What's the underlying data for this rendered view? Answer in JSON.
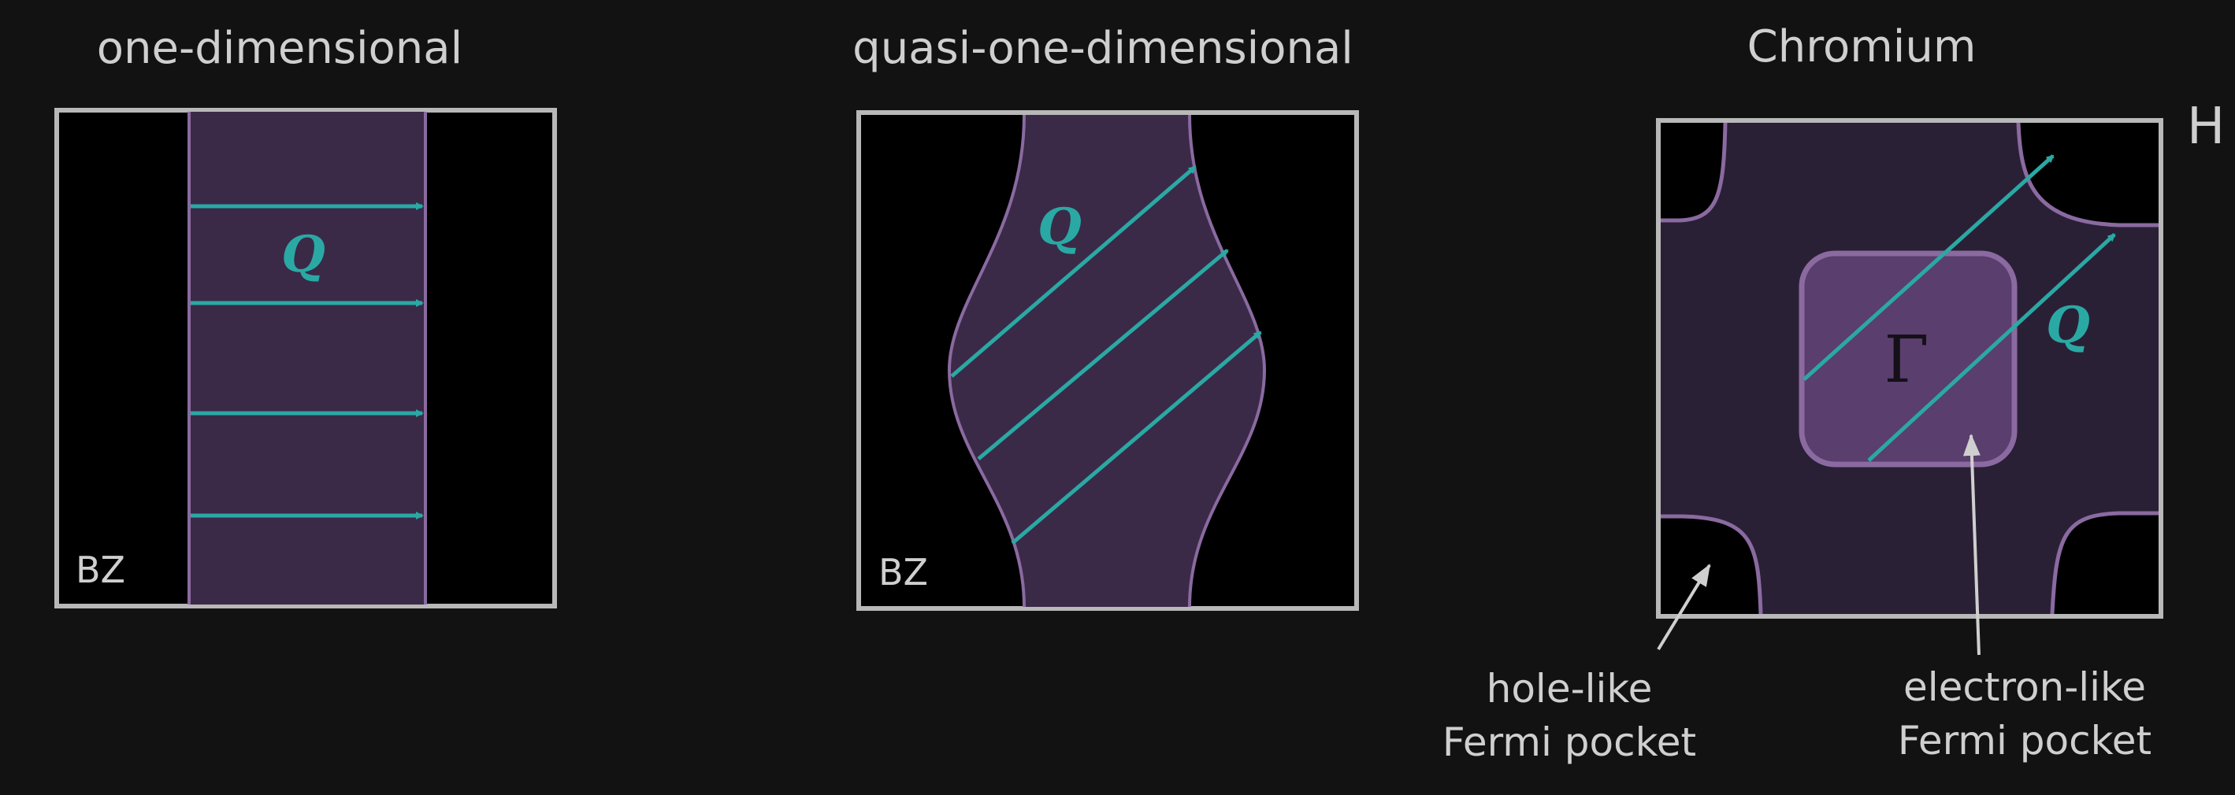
{
  "panels": [
    {
      "title": "one-dimensional",
      "bz_label": "BZ",
      "vector_label": "Q"
    },
    {
      "title": "quasi-one-dimensional",
      "bz_label": "BZ",
      "vector_label": "Q"
    },
    {
      "title": "Chromium",
      "corner_label": "H",
      "center_label": "Γ",
      "vector_label": "Q",
      "hole_label": [
        "hole-like",
        "Fermi pocket"
      ],
      "electron_label": [
        "electron-like",
        "Fermi pocket"
      ]
    }
  ],
  "colors": {
    "background": "#121212",
    "frame": "#b8b8b8",
    "fermi_fill": "#3a2a48",
    "fermi_edge": "#8a6aa0",
    "pocket_fill": "#5a3e6e",
    "vector": "#2aa9a4",
    "text": "#cfcfcf"
  }
}
